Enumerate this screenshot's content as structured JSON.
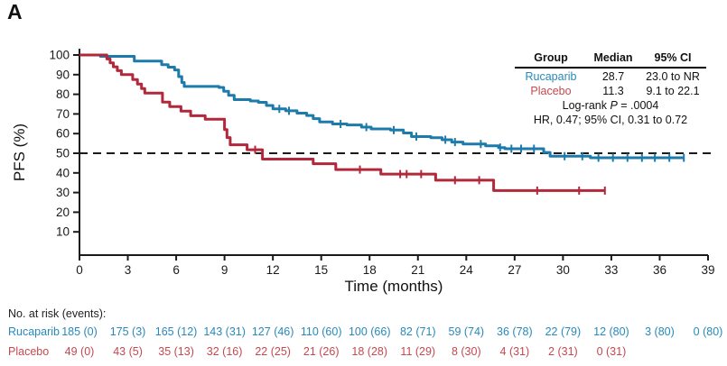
{
  "panel_label": "A",
  "colors": {
    "rucaparib_curve": "#1d7bab",
    "placebo_curve": "#b2283b",
    "rucaparib_text": "#2789bb",
    "placebo_text": "#c5484f",
    "axis": "#1a1a1a"
  },
  "chart_data": {
    "type": "line",
    "subtype": "kaplan-meier-step",
    "title": "",
    "xlabel": "Time (months)",
    "ylabel": "PFS (%)",
    "xlim": [
      0,
      39
    ],
    "ylim": [
      0,
      100
    ],
    "x_ticks": [
      0,
      3,
      6,
      9,
      12,
      15,
      18,
      21,
      24,
      27,
      30,
      33,
      36,
      39
    ],
    "y_ticks": [
      10,
      20,
      30,
      40,
      50,
      60,
      70,
      80,
      90,
      100
    ],
    "grid": false,
    "reference_line_y": 50,
    "legend_position": "top-right-table",
    "series": [
      {
        "name": "Rucaparib",
        "color": "#1d7bab",
        "steps": [
          [
            0,
            100
          ],
          [
            1.3,
            99.3
          ],
          [
            3.4,
            96.9
          ],
          [
            5.1,
            95.1
          ],
          [
            5.5,
            93.8
          ],
          [
            5.9,
            92.4
          ],
          [
            6.15,
            89
          ],
          [
            6.35,
            86
          ],
          [
            6.5,
            84
          ],
          [
            8.65,
            83.5
          ],
          [
            8.95,
            81.5
          ],
          [
            9.25,
            79.5
          ],
          [
            9.6,
            77.3
          ],
          [
            10.6,
            76.6
          ],
          [
            11.1,
            75.9
          ],
          [
            11.6,
            74.3
          ],
          [
            12.0,
            72.6
          ],
          [
            12.8,
            71.6
          ],
          [
            13.5,
            70.4
          ],
          [
            14.1,
            69.2
          ],
          [
            14.5,
            67.6
          ],
          [
            14.9,
            65.9
          ],
          [
            15.7,
            64.9
          ],
          [
            16.6,
            64.4
          ],
          [
            17.5,
            63.3
          ],
          [
            18.1,
            62.4
          ],
          [
            19.3,
            61.8
          ],
          [
            20.1,
            60.3
          ],
          [
            20.6,
            58.5
          ],
          [
            21.8,
            57.9
          ],
          [
            22.5,
            56.9
          ],
          [
            23.1,
            55.7
          ],
          [
            23.8,
            54.7
          ],
          [
            25.2,
            53.8
          ],
          [
            26.0,
            52.9
          ],
          [
            26.4,
            52.3
          ],
          [
            28.8,
            50.4
          ],
          [
            29.2,
            48.5
          ],
          [
            31.7,
            47.7
          ],
          [
            37.5,
            47.7
          ]
        ],
        "censor_times": [
          12.4,
          13.0,
          16.2,
          17.8,
          19.5,
          20.9,
          22.7,
          23.3,
          24.9,
          26.1,
          26.8,
          27.4,
          28.2,
          30.1,
          31.2,
          32.2,
          33.1,
          34.0,
          34.9,
          35.7,
          36.6,
          37.5
        ]
      },
      {
        "name": "Placebo",
        "color": "#b2283b",
        "steps": [
          [
            0,
            100
          ],
          [
            1.7,
            98
          ],
          [
            1.9,
            96
          ],
          [
            2.1,
            94
          ],
          [
            2.35,
            92
          ],
          [
            2.6,
            90
          ],
          [
            3.3,
            87.5
          ],
          [
            3.6,
            85.2
          ],
          [
            3.85,
            82.9
          ],
          [
            4.05,
            80.6
          ],
          [
            5.15,
            76
          ],
          [
            5.6,
            73.7
          ],
          [
            6.3,
            71.4
          ],
          [
            6.9,
            69.1
          ],
          [
            7.8,
            67.3
          ],
          [
            9.0,
            62
          ],
          [
            9.15,
            58
          ],
          [
            9.35,
            54.3
          ],
          [
            10.4,
            51.8
          ],
          [
            11.35,
            47
          ],
          [
            14.5,
            44.7
          ],
          [
            15.9,
            41.7
          ],
          [
            18.7,
            39.4
          ],
          [
            22.1,
            36.3
          ],
          [
            25.7,
            31
          ],
          [
            32.6,
            31
          ]
        ],
        "censor_times": [
          10.9,
          17.4,
          19.9,
          20.3,
          21.2,
          23.3,
          24.8,
          28.4,
          31.0,
          32.6
        ]
      }
    ]
  },
  "stats_table": {
    "headers": [
      "Group",
      "Median",
      "95% CI"
    ],
    "rows": [
      {
        "group": "Rucaparib",
        "median": "28.7",
        "ci": "23.0 to NR"
      },
      {
        "group": "Placebo",
        "median": "11.3",
        "ci": "9.1 to 22.1"
      }
    ],
    "logrank_prefix": "Log-rank",
    "logrank_p": "P",
    "logrank_rest": " = .0004",
    "hr_line": "HR, 0.47; 95% CI, 0.31 to 0.72"
  },
  "risk_table": {
    "title": "No. at risk (events):",
    "rows": [
      {
        "name": "Rucaparib",
        "color": "#2789bb",
        "values": [
          "185 (0)",
          "175 (3)",
          "165 (12)",
          "143 (31)",
          "127 (46)",
          "110 (60)",
          "100 (66)",
          "82 (71)",
          "59 (74)",
          "36 (78)",
          "22 (79)",
          "12 (80)",
          "3 (80)",
          "0 (80)"
        ]
      },
      {
        "name": "Placebo",
        "color": "#c5484f",
        "values": [
          "49 (0)",
          "43 (5)",
          "35 (13)",
          "32 (16)",
          "22 (25)",
          "21 (26)",
          "18 (28)",
          "11 (29)",
          "8 (30)",
          "4 (31)",
          "2 (31)",
          "0 (31)"
        ]
      }
    ]
  }
}
